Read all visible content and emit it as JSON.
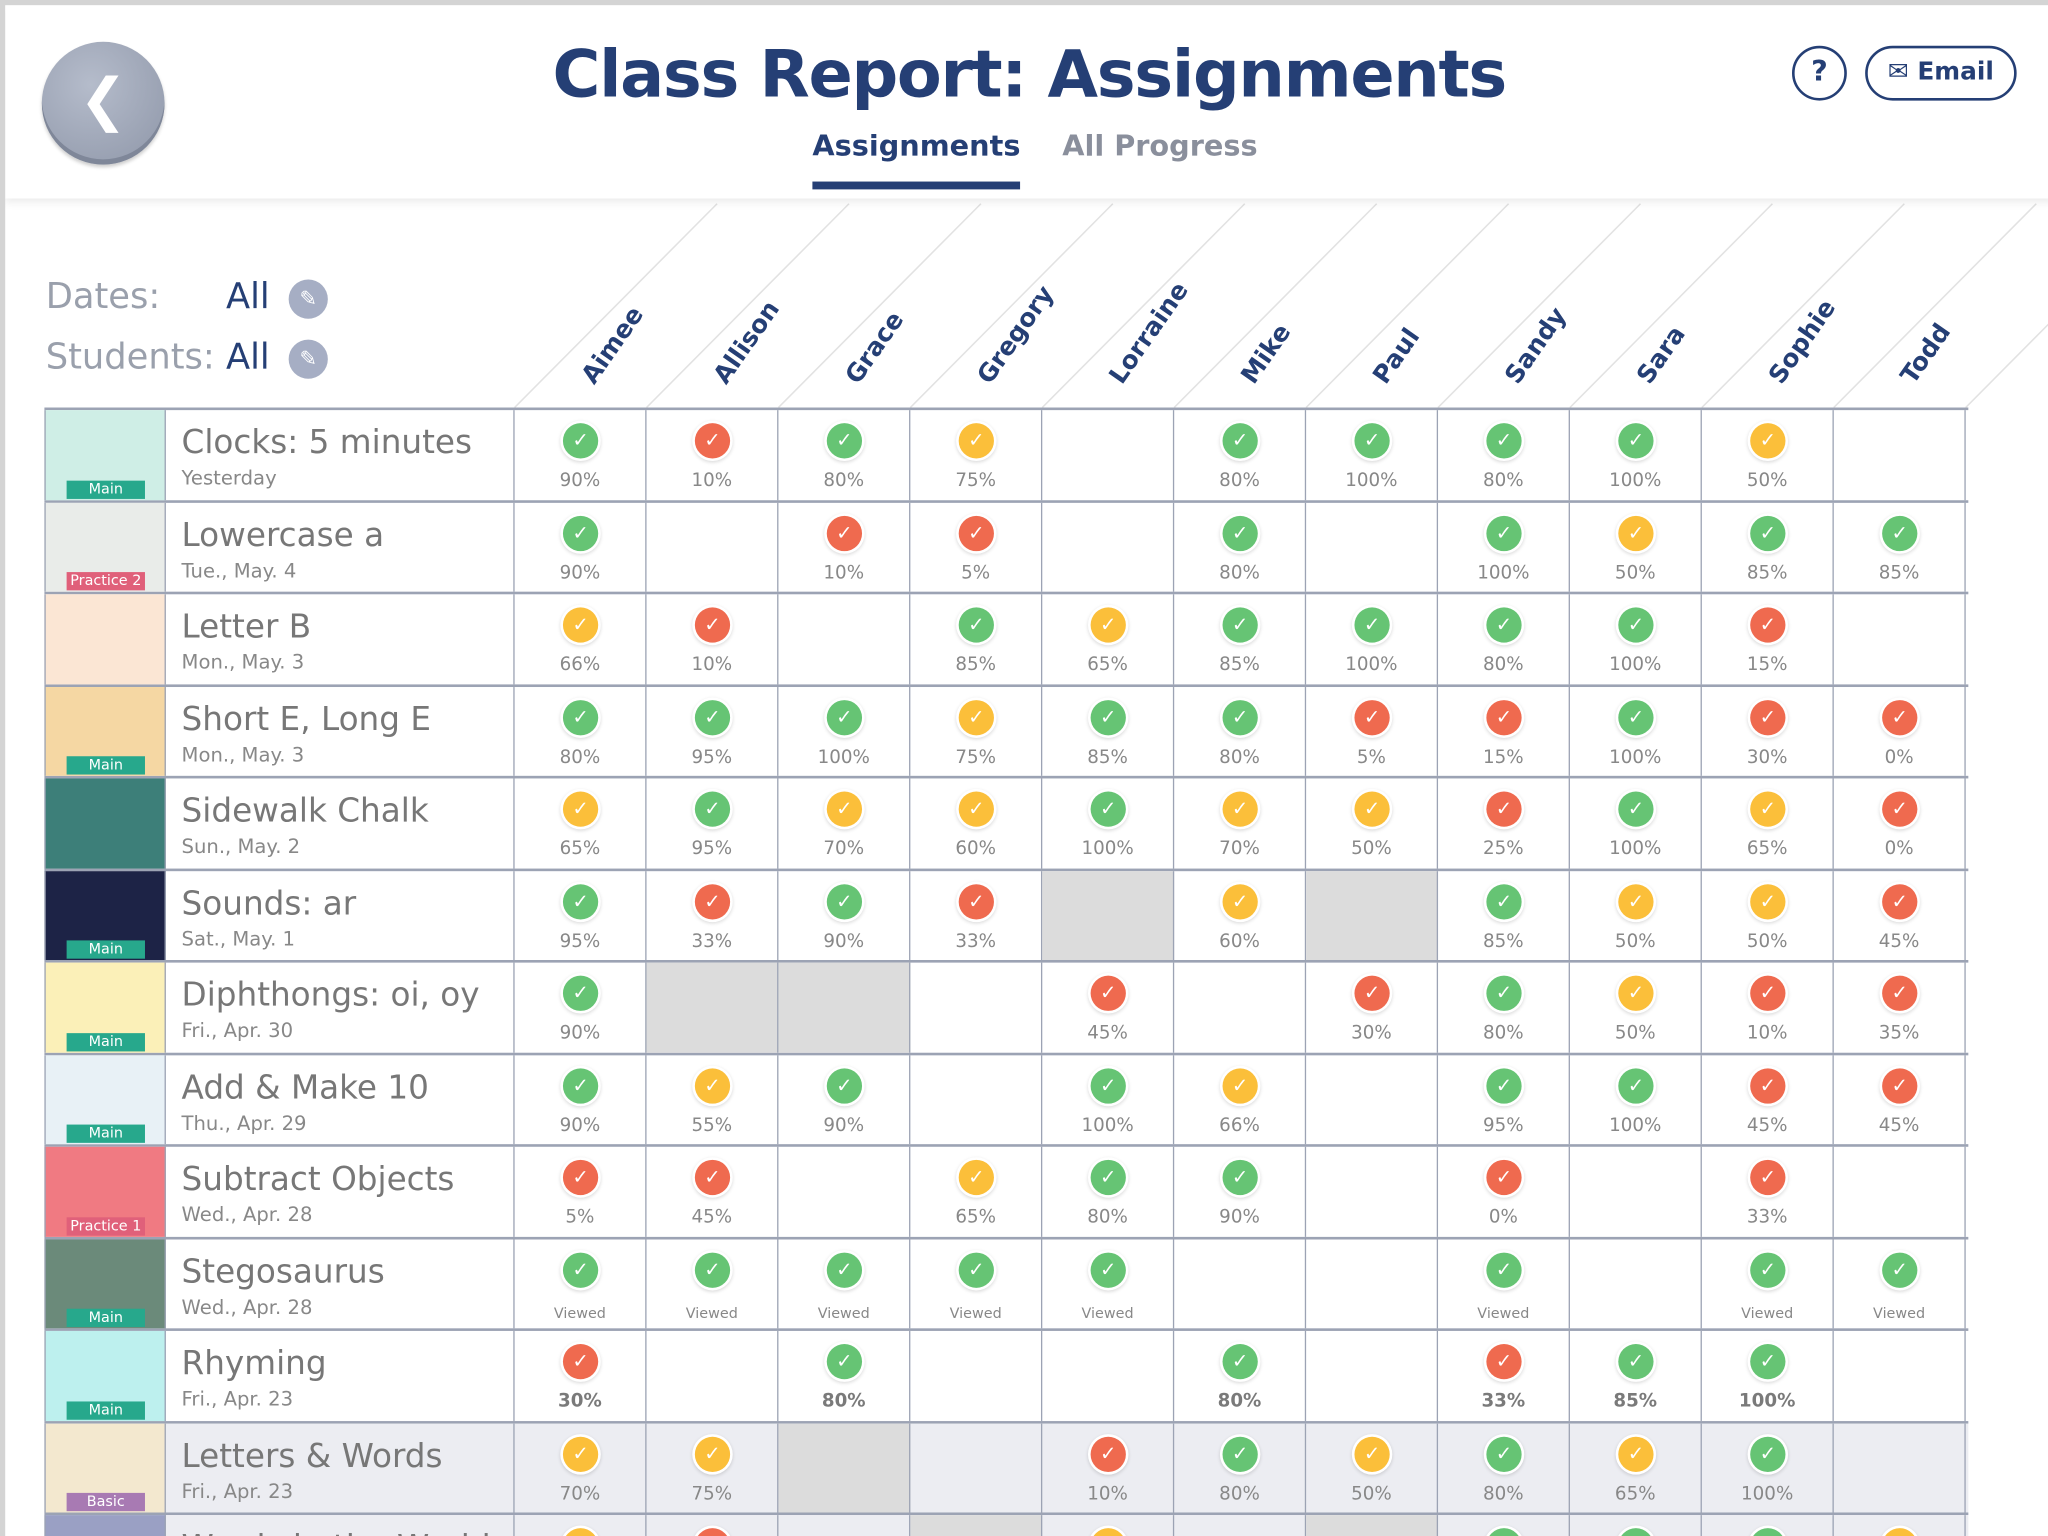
{
  "header": {
    "title": "Class Report: Assignments",
    "back_icon": "chevron-left-icon",
    "help_label": "?",
    "email_label": "Email",
    "email_icon": "envelope-icon",
    "tabs": [
      {
        "label": "Assignments",
        "active": true
      },
      {
        "label": "All Progress",
        "active": false
      }
    ]
  },
  "filters": {
    "dates_label": "Dates:",
    "dates_value": "All",
    "students_label": "Students:",
    "students_value": "All"
  },
  "colors": {
    "g": "#66c474",
    "y": "#fbbf3a",
    "r": "#ef6a4f",
    "accent": "#253f75"
  },
  "students": [
    "Aimee",
    "Allison",
    "Grace",
    "Gregory",
    "Lorraine",
    "Mike",
    "Paul",
    "Sandy",
    "Sara",
    "Sophie",
    "Todd"
  ],
  "assignments": [
    {
      "name": "Clocks: 5 minutes",
      "date": "Yesterday",
      "badge": "Main",
      "badge_color": "#27a88c",
      "thumb": "#cfeee6",
      "cells": [
        [
          "g",
          "90%"
        ],
        [
          "r",
          "10%"
        ],
        [
          "g",
          "80%"
        ],
        [
          "y",
          "75%"
        ],
        [
          "",
          ""
        ],
        [
          "g",
          "80%"
        ],
        [
          "g",
          "100%"
        ],
        [
          "g",
          "80%"
        ],
        [
          "g",
          "100%"
        ],
        [
          "y",
          "50%"
        ],
        [
          "",
          ""
        ]
      ]
    },
    {
      "name": "Lowercase a",
      "date": "Tue., May. 4",
      "badge": "Practice 2",
      "badge_color": "#e0607a",
      "thumb": "#e9ece9",
      "cells": [
        [
          "g",
          "90%"
        ],
        [
          "",
          ""
        ],
        [
          "r",
          "10%"
        ],
        [
          "r",
          "5%"
        ],
        [
          "",
          ""
        ],
        [
          "g",
          "80%"
        ],
        [
          "",
          ""
        ],
        [
          "g",
          "100%"
        ],
        [
          "y",
          "50%"
        ],
        [
          "g",
          "85%"
        ],
        [
          "g",
          "85%"
        ]
      ]
    },
    {
      "name": "Letter B",
      "date": "Mon., May. 3",
      "badge": "",
      "badge_color": "",
      "thumb": "#fbe6d4",
      "cells": [
        [
          "y",
          "66%"
        ],
        [
          "r",
          "10%"
        ],
        [
          "",
          ""
        ],
        [
          "g",
          "85%"
        ],
        [
          "y",
          "65%"
        ],
        [
          "g",
          "85%"
        ],
        [
          "g",
          "100%"
        ],
        [
          "g",
          "80%"
        ],
        [
          "g",
          "100%"
        ],
        [
          "r",
          "15%"
        ],
        [
          "",
          ""
        ]
      ]
    },
    {
      "name": "Short E, Long E",
      "date": "Mon., May. 3",
      "badge": "Main",
      "badge_color": "#27a88c",
      "thumb": "#f5d7a3",
      "cells": [
        [
          "g",
          "80%"
        ],
        [
          "g",
          "95%"
        ],
        [
          "g",
          "100%"
        ],
        [
          "y",
          "75%"
        ],
        [
          "g",
          "85%"
        ],
        [
          "g",
          "80%"
        ],
        [
          "r",
          "5%"
        ],
        [
          "r",
          "15%"
        ],
        [
          "g",
          "100%"
        ],
        [
          "r",
          "30%"
        ],
        [
          "r",
          "0%"
        ]
      ]
    },
    {
      "name": "Sidewalk Chalk",
      "date": "Sun., May. 2",
      "badge": "",
      "badge_color": "",
      "thumb": "#3d7f79",
      "cells": [
        [
          "y",
          "65%"
        ],
        [
          "g",
          "95%"
        ],
        [
          "y",
          "70%"
        ],
        [
          "y",
          "60%"
        ],
        [
          "g",
          "100%"
        ],
        [
          "y",
          "70%"
        ],
        [
          "y",
          "50%"
        ],
        [
          "r",
          "25%"
        ],
        [
          "g",
          "100%"
        ],
        [
          "y",
          "65%"
        ],
        [
          "r",
          "0%"
        ]
      ]
    },
    {
      "name": "Sounds: ar",
      "date": "Sat., May. 1",
      "badge": "Main",
      "badge_color": "#27a88c",
      "thumb": "#1d2346",
      "cells": [
        [
          "g",
          "95%"
        ],
        [
          "r",
          "33%"
        ],
        [
          "g",
          "90%"
        ],
        [
          "r",
          "33%"
        ],
        [
          "x",
          ""
        ],
        [
          "y",
          "60%"
        ],
        [
          "x",
          ""
        ],
        [
          "g",
          "85%"
        ],
        [
          "y",
          "50%"
        ],
        [
          "y",
          "50%"
        ],
        [
          "r",
          "45%"
        ]
      ]
    },
    {
      "name": "Diphthongs: oi, oy",
      "date": "Fri., Apr. 30",
      "badge": "Main",
      "badge_color": "#27a88c",
      "thumb": "#fbf0b8",
      "cells": [
        [
          "g",
          "90%"
        ],
        [
          "x",
          ""
        ],
        [
          "x",
          ""
        ],
        [
          "",
          ""
        ],
        [
          "r",
          "45%"
        ],
        [
          "",
          ""
        ],
        [
          "r",
          "30%"
        ],
        [
          "g",
          "80%"
        ],
        [
          "y",
          "50%"
        ],
        [
          "r",
          "10%"
        ],
        [
          "r",
          "35%"
        ]
      ]
    },
    {
      "name": "Add & Make 10",
      "date": "Thu., Apr. 29",
      "badge": "Main",
      "badge_color": "#27a88c",
      "thumb": "#e8f1f6",
      "cells": [
        [
          "g",
          "90%"
        ],
        [
          "y",
          "55%"
        ],
        [
          "g",
          "90%"
        ],
        [
          "",
          ""
        ],
        [
          "g",
          "100%"
        ],
        [
          "y",
          "66%"
        ],
        [
          "",
          ""
        ],
        [
          "g",
          "95%"
        ],
        [
          "g",
          "100%"
        ],
        [
          "r",
          "45%"
        ],
        [
          "r",
          "45%"
        ]
      ]
    },
    {
      "name": "Subtract Objects",
      "date": "Wed., Apr. 28",
      "badge": "Practice 1",
      "badge_color": "#e0607a",
      "thumb": "#f07a82",
      "cells": [
        [
          "r",
          "5%"
        ],
        [
          "r",
          "45%"
        ],
        [
          "",
          ""
        ],
        [
          "y",
          "65%"
        ],
        [
          "g",
          "80%"
        ],
        [
          "g",
          "90%"
        ],
        [
          "",
          ""
        ],
        [
          "r",
          "0%"
        ],
        [
          "",
          ""
        ],
        [
          "r",
          "33%"
        ],
        [
          "",
          ""
        ]
      ]
    },
    {
      "name": "Stegosaurus",
      "date": "Wed., Apr. 28",
      "badge": "Main",
      "badge_color": "#27a88c",
      "thumb": "#6b8a7a",
      "cells": [
        [
          "g",
          "Viewed"
        ],
        [
          "g",
          "Viewed"
        ],
        [
          "g",
          "Viewed"
        ],
        [
          "g",
          "Viewed"
        ],
        [
          "g",
          "Viewed"
        ],
        [
          "",
          ""
        ],
        [
          "",
          ""
        ],
        [
          "g",
          "Viewed"
        ],
        [
          "",
          ""
        ],
        [
          "g",
          "Viewed"
        ],
        [
          "g",
          "Viewed"
        ]
      ]
    },
    {
      "name": "Rhyming",
      "date": "Fri., Apr. 23",
      "badge": "Main",
      "badge_color": "#27a88c",
      "thumb": "#bdf0ee",
      "bold": true,
      "cells": [
        [
          "r",
          "30%"
        ],
        [
          "",
          ""
        ],
        [
          "g",
          "80%"
        ],
        [
          "",
          ""
        ],
        [
          "",
          ""
        ],
        [
          "g",
          "80%"
        ],
        [
          "",
          ""
        ],
        [
          "r",
          "33%"
        ],
        [
          "g",
          "85%"
        ],
        [
          "g",
          "100%"
        ],
        [
          "",
          ""
        ]
      ]
    },
    {
      "name": "Letters & Words",
      "date": "Fri., Apr. 23",
      "badge": "Basic",
      "badge_color": "#a87ab3",
      "thumb": "#f3e8cf",
      "highlight": true,
      "cells": [
        [
          "y",
          "70%"
        ],
        [
          "y",
          "75%"
        ],
        [
          "x",
          ""
        ],
        [
          "",
          ""
        ],
        [
          "r",
          "10%"
        ],
        [
          "g",
          "80%"
        ],
        [
          "y",
          "50%"
        ],
        [
          "g",
          "80%"
        ],
        [
          "y",
          "65%"
        ],
        [
          "g",
          "100%"
        ],
        [
          "",
          ""
        ]
      ]
    },
    {
      "name": "Words in the World",
      "date": "",
      "badge": "",
      "badge_color": "",
      "thumb": "#9aa0c4",
      "highlight": true,
      "cells": [
        [
          "y",
          ""
        ],
        [
          "r",
          ""
        ],
        [
          "",
          ""
        ],
        [
          "x",
          ""
        ],
        [
          "y",
          ""
        ],
        [
          "",
          ""
        ],
        [
          "x",
          ""
        ],
        [
          "g",
          ""
        ],
        [
          "g",
          ""
        ],
        [
          "g",
          ""
        ],
        [
          "y",
          ""
        ]
      ]
    }
  ]
}
